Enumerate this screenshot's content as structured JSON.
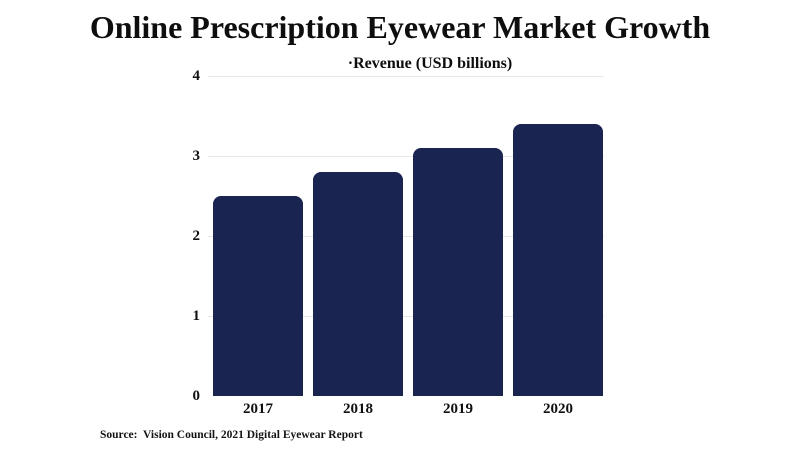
{
  "title": "Online Prescription Eyewear Market Growth",
  "colors": {
    "bar": "#1a2450",
    "grid": "#e8e8e8",
    "text": "#0e0e0e",
    "background": "#ffffff"
  },
  "chart_data": {
    "type": "bar",
    "title": "Online Prescription Eyewear Market Growth",
    "legend_label": "·Revenue (USD billions)",
    "series_name": "Revenue (USD billions)",
    "categories": [
      "2017",
      "2018",
      "2019",
      "2020"
    ],
    "values": [
      2.5,
      2.8,
      3.1,
      3.4
    ],
    "xlabel": "",
    "ylabel": "Revenue (USD billions)",
    "ylim": [
      0,
      4
    ],
    "yticks": [
      0,
      1,
      2,
      3,
      4
    ],
    "grid": true,
    "legend_position": "top",
    "source": "Source:  Vision Council, 2021 Digital Eyewear Report"
  }
}
